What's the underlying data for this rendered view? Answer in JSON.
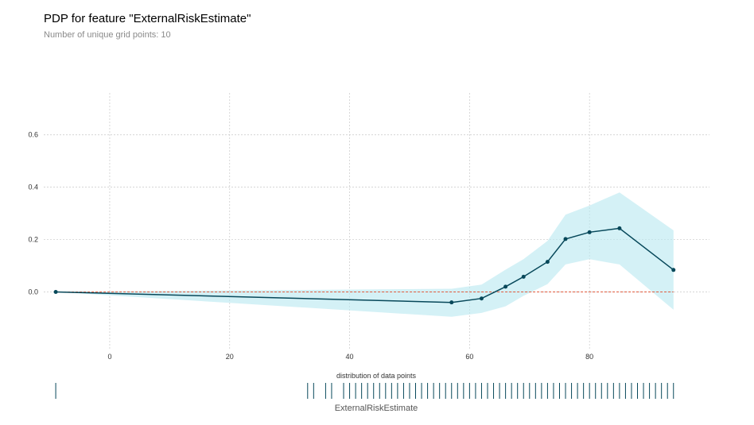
{
  "title": "PDP for feature \"ExternalRiskEstimate\"",
  "subtitle": "Number of unique grid points: 10",
  "colors": {
    "line": "#07485a",
    "band": "#b8e8f0",
    "baseline": "#e05a3c",
    "grid": "#c8c8c8",
    "rug": "#07485a"
  },
  "chart_data": {
    "type": "line",
    "title": "PDP for feature \"ExternalRiskEstimate\"",
    "subtitle": "Number of unique grid points: 10",
    "xlabel": "ExternalRiskEstimate",
    "ylabel": "",
    "xlim": [
      -11,
      100
    ],
    "ylim": [
      -0.22,
      0.76
    ],
    "x_ticks": [
      0,
      20,
      40,
      60,
      80
    ],
    "y_ticks": [
      0.0,
      0.2,
      0.4,
      0.6
    ],
    "y_tick_labels": [
      "0.0",
      "0.2",
      "0.4",
      "0.6"
    ],
    "grid": true,
    "baseline": 0.0,
    "series": [
      {
        "x": [
          -9,
          57,
          62,
          66,
          69,
          73,
          76,
          80,
          85,
          94
        ],
        "y": [
          0.0,
          -0.04,
          -0.025,
          0.02,
          0.058,
          0.115,
          0.202,
          0.228,
          0.243,
          0.084
        ],
        "upper": [
          0.0,
          0.012,
          0.028,
          0.085,
          0.125,
          0.195,
          0.295,
          0.33,
          0.38,
          0.235
        ],
        "lower": [
          0.0,
          -0.095,
          -0.08,
          -0.055,
          -0.015,
          0.03,
          0.105,
          0.125,
          0.105,
          -0.068
        ]
      }
    ],
    "rug": {
      "label": "distribution of data points",
      "values": [
        -9,
        33,
        34,
        36,
        37,
        39,
        40,
        41,
        42,
        43,
        44,
        45,
        46,
        47,
        48,
        49,
        50,
        51,
        52,
        53,
        54,
        55,
        56,
        57,
        58,
        59,
        60,
        61,
        62,
        63,
        64,
        65,
        66,
        67,
        68,
        69,
        70,
        71,
        72,
        73,
        74,
        75,
        76,
        77,
        78,
        79,
        80,
        81,
        82,
        83,
        84,
        85,
        86,
        87,
        88,
        89,
        90,
        91,
        92,
        93,
        94
      ]
    }
  }
}
